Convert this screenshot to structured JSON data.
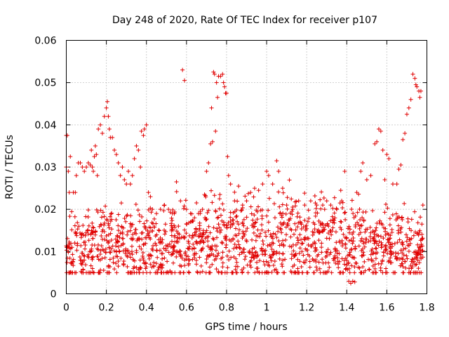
{
  "chart_data": {
    "type": "scatter",
    "title": "Day 248 of 2020, Rate Of TEC Index for receiver p107",
    "xlabel": "GPS time / hours",
    "ylabel": "ROTI / TECUs",
    "xlim": [
      0,
      1.8
    ],
    "ylim": [
      0,
      0.06
    ],
    "xticks": [
      "0",
      "0.2",
      "0.4",
      "0.6",
      "0.8",
      "1",
      "1.2",
      "1.4",
      "1.6",
      "1.8"
    ],
    "yticks": [
      "0",
      "0.01",
      "0.02",
      "0.03",
      "0.04",
      "0.05",
      "0.06"
    ],
    "grid": true,
    "marker": "+",
    "color": "#e00000",
    "series": [
      {
        "points": [
          [
            0.0,
            0.0375
          ],
          [
            0.005,
            0.0375
          ],
          [
            0.0,
            0.03
          ],
          [
            0.01,
            0.029
          ],
          [
            0.02,
            0.0325
          ],
          [
            0.015,
            0.024
          ],
          [
            0.035,
            0.024
          ],
          [
            0.045,
            0.024
          ],
          [
            0.05,
            0.028
          ],
          [
            0.06,
            0.031
          ],
          [
            0.07,
            0.031
          ],
          [
            0.08,
            0.03
          ],
          [
            0.09,
            0.029
          ],
          [
            0.1,
            0.03
          ],
          [
            0.11,
            0.031
          ],
          [
            0.12,
            0.0305
          ],
          [
            0.125,
            0.034
          ],
          [
            0.13,
            0.03
          ],
          [
            0.135,
            0.029
          ],
          [
            0.14,
            0.0325
          ],
          [
            0.145,
            0.035
          ],
          [
            0.15,
            0.033
          ],
          [
            0.155,
            0.028
          ],
          [
            0.16,
            0.039
          ],
          [
            0.17,
            0.04
          ],
          [
            0.18,
            0.038
          ],
          [
            0.19,
            0.042
          ],
          [
            0.2,
            0.044
          ],
          [
            0.205,
            0.0455
          ],
          [
            0.21,
            0.042
          ],
          [
            0.215,
            0.039
          ],
          [
            0.22,
            0.037
          ],
          [
            0.23,
            0.037
          ],
          [
            0.24,
            0.034
          ],
          [
            0.25,
            0.033
          ],
          [
            0.26,
            0.031
          ],
          [
            0.27,
            0.028
          ],
          [
            0.28,
            0.03
          ],
          [
            0.29,
            0.027
          ],
          [
            0.3,
            0.026
          ],
          [
            0.31,
            0.029
          ],
          [
            0.32,
            0.026
          ],
          [
            0.33,
            0.028
          ],
          [
            0.34,
            0.032
          ],
          [
            0.35,
            0.035
          ],
          [
            0.36,
            0.034
          ],
          [
            0.37,
            0.03
          ],
          [
            0.375,
            0.0385
          ],
          [
            0.385,
            0.0375
          ],
          [
            0.39,
            0.039
          ],
          [
            0.4,
            0.04
          ],
          [
            0.41,
            0.024
          ],
          [
            0.42,
            0.023
          ],
          [
            0.43,
            0.02
          ],
          [
            0.45,
            0.019
          ],
          [
            0.47,
            0.02
          ],
          [
            0.49,
            0.021
          ],
          [
            0.51,
            0.02
          ],
          [
            0.53,
            0.019
          ],
          [
            0.55,
            0.0265
          ],
          [
            0.57,
            0.022
          ],
          [
            0.58,
            0.053
          ],
          [
            0.59,
            0.0505
          ],
          [
            0.6,
            0.02
          ],
          [
            0.62,
            0.019
          ],
          [
            0.64,
            0.018
          ],
          [
            0.66,
            0.019
          ],
          [
            0.68,
            0.02
          ],
          [
            0.69,
            0.0235
          ],
          [
            0.7,
            0.029
          ],
          [
            0.71,
            0.031
          ],
          [
            0.72,
            0.0355
          ],
          [
            0.725,
            0.044
          ],
          [
            0.73,
            0.036
          ],
          [
            0.735,
            0.0525
          ],
          [
            0.74,
            0.052
          ],
          [
            0.745,
            0.0385
          ],
          [
            0.75,
            0.05
          ],
          [
            0.755,
            0.0465
          ],
          [
            0.76,
            0.0515
          ],
          [
            0.77,
            0.0515
          ],
          [
            0.78,
            0.052
          ],
          [
            0.785,
            0.05
          ],
          [
            0.79,
            0.049
          ],
          [
            0.795,
            0.0475
          ],
          [
            0.8,
            0.0475
          ],
          [
            0.805,
            0.0325
          ],
          [
            0.81,
            0.028
          ],
          [
            0.82,
            0.026
          ],
          [
            0.84,
            0.022
          ],
          [
            0.86,
            0.0255
          ],
          [
            0.88,
            0.021
          ],
          [
            0.9,
            0.022
          ],
          [
            0.92,
            0.024
          ],
          [
            0.94,
            0.025
          ],
          [
            0.96,
            0.0245
          ],
          [
            0.98,
            0.026
          ],
          [
            1.0,
            0.029
          ],
          [
            1.01,
            0.028
          ],
          [
            1.03,
            0.026
          ],
          [
            1.05,
            0.0315
          ],
          [
            1.06,
            0.029
          ],
          [
            1.08,
            0.025
          ],
          [
            1.1,
            0.021
          ],
          [
            1.13,
            0.02
          ],
          [
            1.16,
            0.022
          ],
          [
            1.19,
            0.021
          ],
          [
            1.22,
            0.022
          ],
          [
            1.25,
            0.021
          ],
          [
            1.28,
            0.021
          ],
          [
            1.3,
            0.022
          ],
          [
            1.32,
            0.021
          ],
          [
            1.35,
            0.02
          ],
          [
            1.37,
            0.0245
          ],
          [
            1.39,
            0.029
          ],
          [
            1.41,
            0.003
          ],
          [
            1.42,
            0.0025
          ],
          [
            1.43,
            0.003
          ],
          [
            1.44,
            0.0028
          ],
          [
            1.45,
            0.024
          ],
          [
            1.47,
            0.029
          ],
          [
            1.48,
            0.031
          ],
          [
            1.5,
            0.027
          ],
          [
            1.52,
            0.028
          ],
          [
            1.54,
            0.0355
          ],
          [
            1.55,
            0.036
          ],
          [
            1.56,
            0.039
          ],
          [
            1.57,
            0.0385
          ],
          [
            1.58,
            0.034
          ],
          [
            1.59,
            0.027
          ],
          [
            1.6,
            0.033
          ],
          [
            1.61,
            0.032
          ],
          [
            1.63,
            0.026
          ],
          [
            1.65,
            0.026
          ],
          [
            1.66,
            0.0295
          ],
          [
            1.67,
            0.0305
          ],
          [
            1.68,
            0.0365
          ],
          [
            1.69,
            0.038
          ],
          [
            1.7,
            0.0425
          ],
          [
            1.71,
            0.044
          ],
          [
            1.72,
            0.046
          ],
          [
            1.73,
            0.052
          ],
          [
            1.74,
            0.051
          ],
          [
            1.745,
            0.0495
          ],
          [
            1.75,
            0.049
          ],
          [
            1.76,
            0.048
          ],
          [
            1.765,
            0.0465
          ],
          [
            1.77,
            0.048
          ],
          [
            1.78,
            0.021
          ],
          [
            1.775,
            0.0165
          ]
        ],
        "band": [
          [
            0.0,
            0.0095,
            0.008
          ],
          [
            0.05,
            0.011,
            0.009
          ],
          [
            0.1,
            0.011,
            0.009
          ],
          [
            0.15,
            0.012,
            0.01
          ],
          [
            0.2,
            0.0125,
            0.011
          ],
          [
            0.25,
            0.012,
            0.01
          ],
          [
            0.3,
            0.011,
            0.01
          ],
          [
            0.35,
            0.011,
            0.01
          ],
          [
            0.4,
            0.0105,
            0.01
          ],
          [
            0.45,
            0.011,
            0.01
          ],
          [
            0.5,
            0.0115,
            0.01
          ],
          [
            0.55,
            0.012,
            0.01
          ],
          [
            0.6,
            0.0115,
            0.01
          ],
          [
            0.65,
            0.011,
            0.01
          ],
          [
            0.7,
            0.0115,
            0.011
          ],
          [
            0.75,
            0.012,
            0.011
          ],
          [
            0.8,
            0.013,
            0.011
          ],
          [
            0.85,
            0.0125,
            0.011
          ],
          [
            0.9,
            0.012,
            0.011
          ],
          [
            0.95,
            0.012,
            0.011
          ],
          [
            1.0,
            0.012,
            0.011
          ],
          [
            1.05,
            0.0125,
            0.011
          ],
          [
            1.1,
            0.013,
            0.011
          ],
          [
            1.15,
            0.0125,
            0.011
          ],
          [
            1.2,
            0.012,
            0.011
          ],
          [
            1.25,
            0.012,
            0.011
          ],
          [
            1.3,
            0.012,
            0.011
          ],
          [
            1.35,
            0.0115,
            0.011
          ],
          [
            1.4,
            0.012,
            0.011
          ],
          [
            1.45,
            0.012,
            0.011
          ],
          [
            1.5,
            0.0115,
            0.01
          ],
          [
            1.55,
            0.011,
            0.01
          ],
          [
            1.6,
            0.011,
            0.01
          ],
          [
            1.65,
            0.011,
            0.01
          ],
          [
            1.7,
            0.011,
            0.01
          ],
          [
            1.75,
            0.0105,
            0.009
          ],
          [
            1.78,
            0.01,
            0.008
          ]
        ]
      }
    ]
  }
}
